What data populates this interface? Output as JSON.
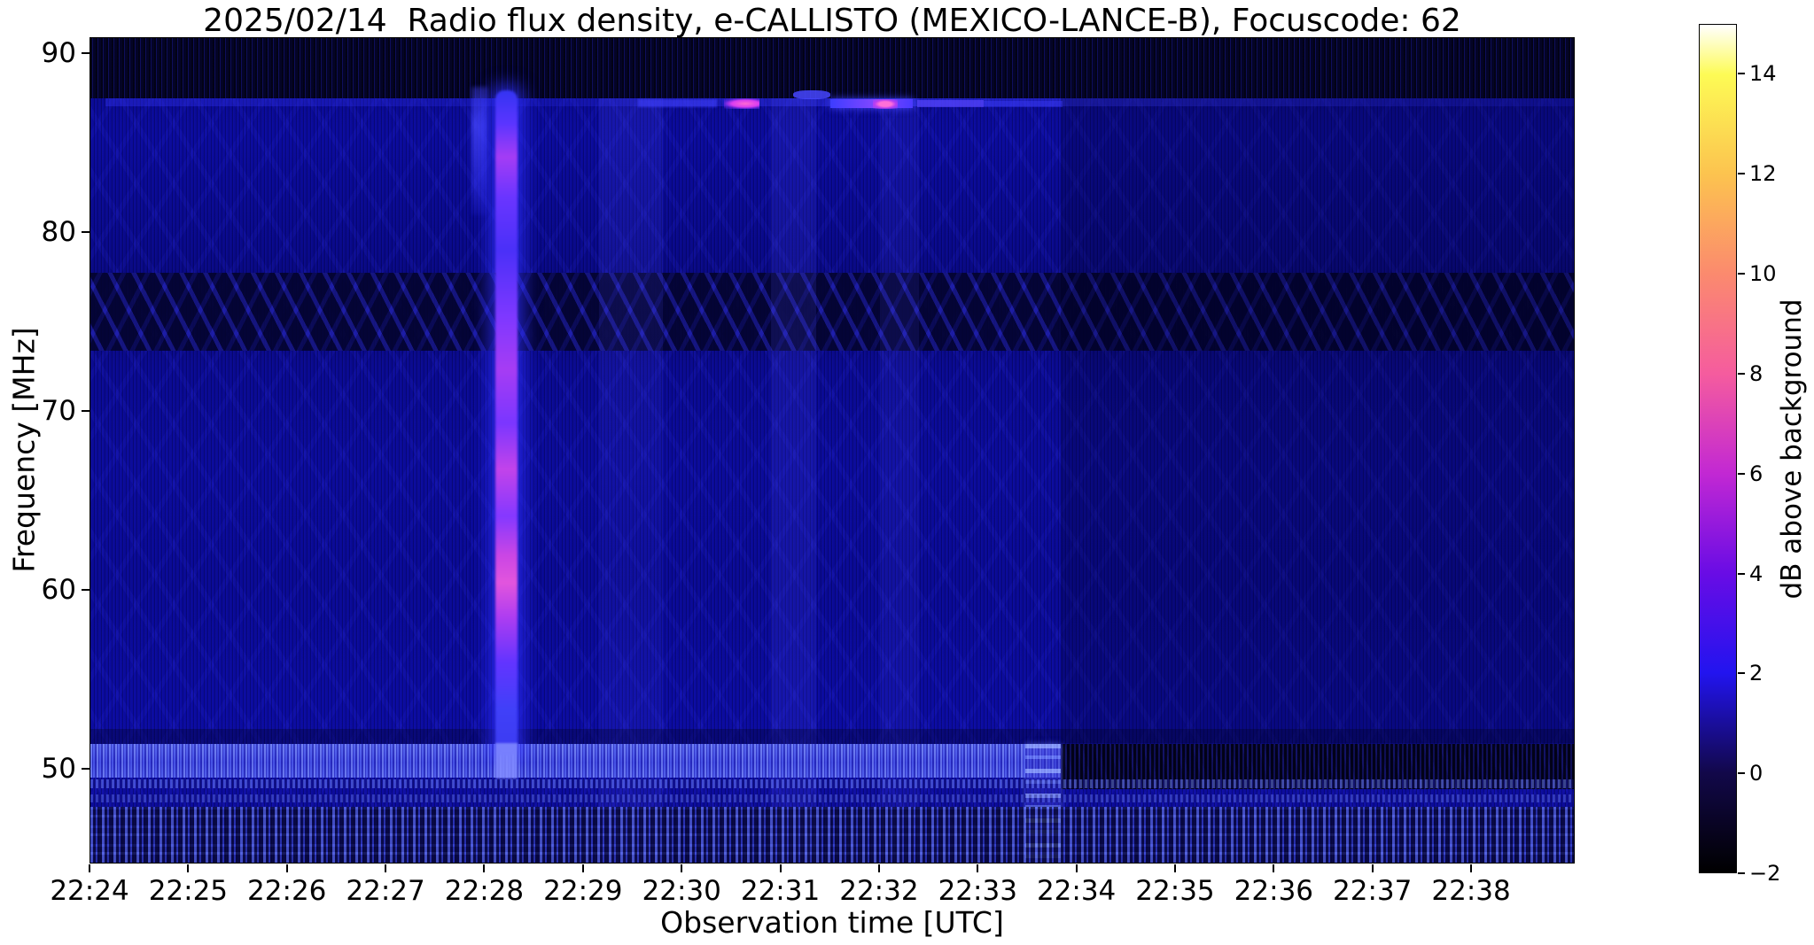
{
  "title": "2025/02/14  Radio flux density, e-CALLISTO (MEXICO-LANCE-B), Focuscode: 62",
  "chart_data": {
    "type": "heatmap",
    "subtype": "radio-spectrogram",
    "title": "2025/02/14  Radio flux density, e-CALLISTO (MEXICO-LANCE-B), Focuscode: 62",
    "meta": {
      "date": "2025/02/14",
      "instrument": "MEXICO-LANCE-B",
      "network": "e-CALLISTO",
      "focuscode": "62"
    },
    "xlabel": "Observation time [UTC]",
    "ylabel": "Frequency [MHz]",
    "x_ticks": [
      "22:24",
      "22:25",
      "22:26",
      "22:27",
      "22:28",
      "22:29",
      "22:30",
      "22:31",
      "22:32",
      "22:33",
      "22:34",
      "22:35",
      "22:36",
      "22:37",
      "22:38"
    ],
    "x_tick_interval_min": 1,
    "x_total_min": 15.05,
    "x_range": [
      "22:24:00",
      "22:39:03"
    ],
    "y_ticks": [
      90,
      80,
      70,
      60,
      50
    ],
    "y_range_mhz": [
      44.7,
      90.9
    ],
    "grid": false,
    "background_level_db": 0,
    "colorbar": {
      "label": "dB above background",
      "ticks": [
        14,
        12,
        10,
        8,
        6,
        4,
        2,
        0,
        -2
      ],
      "vmin": -2,
      "vmax": 15,
      "stops": [
        {
          "v": 15,
          "c": "#ffffff"
        },
        {
          "v": 14,
          "c": "#fdfb55"
        },
        {
          "v": 12,
          "c": "#fcc34f"
        },
        {
          "v": 10,
          "c": "#fb8a6e"
        },
        {
          "v": 8,
          "c": "#f55c9e"
        },
        {
          "v": 6,
          "c": "#c228d3"
        },
        {
          "v": 4,
          "c": "#690ce5"
        },
        {
          "v": 2,
          "c": "#2214ef"
        },
        {
          "v": 0,
          "c": "#12084a"
        },
        {
          "v": -2,
          "c": "#000000"
        }
      ]
    },
    "features": [
      {
        "name": "band-top-dark",
        "desc": "dark speckled band 87.5-90 MHz across full duration",
        "t0": 0,
        "t1": 15.05,
        "f0": 90.9,
        "f1": 87.55,
        "style": {
          "background": "repeating-linear-gradient(90deg, rgba(2,2,20,0.8) 0 2px, rgba(22,22,150,0.5) 2px 3px, rgba(4,4,40,0.8) 3px 6px), linear-gradient(#05051f,#05051f)"
        }
      },
      {
        "name": "row-top-bright-base",
        "desc": "narrow brighter channel near 87.2 MHz",
        "t0": 0.15,
        "t1": 15.05,
        "f0": 87.55,
        "f1": 87.1,
        "style": {
          "background": "linear-gradient(90deg, rgba(50,50,240,0.40), rgba(40,40,220,0.28) 30%, rgba(60,60,255,0.45) 55%, rgba(40,40,230,0.28))"
        }
      },
      {
        "name": "band-mid-dark",
        "desc": "darker interference band 73.5-78 MHz with chevron ripple pattern",
        "t0": 0,
        "t1": 15.05,
        "f0": 77.8,
        "f1": 73.4,
        "style": {
          "background": "repeating-linear-gradient(63deg, rgba(3,3,40,0.5) 0 9px, rgba(45,45,215,0.4) 9px 14px, rgba(3,3,40,0.5) 14px 24px), repeating-linear-gradient(-63deg, rgba(3,3,40,0.45) 0 9px, rgba(40,40,210,0.35) 9px 14px, rgba(3,3,40,0.45) 14px 24px), linear-gradient(rgba(4,4,55,0.5),rgba(4,4,55,0.5))"
        }
      },
      {
        "name": "column-faint-1",
        "desc": "faint brighter column near 22:29.5",
        "t0": 5.15,
        "t1": 5.8,
        "f0": 87.55,
        "f1": 44.7,
        "style": {
          "background": "linear-gradient(180deg, rgba(80,80,255,0.16), rgba(80,80,255,0.07) 60%, rgba(80,80,255,0.14))"
        }
      },
      {
        "name": "column-faint-2",
        "desc": "faint brighter column near 22:31.1",
        "t0": 6.9,
        "t1": 7.35,
        "f0": 87.55,
        "f1": 44.7,
        "style": {
          "background": "rgba(85,85,255,0.14)"
        }
      },
      {
        "name": "column-faint-3",
        "desc": "faint brighter column near 22:32.2",
        "t0": 8.0,
        "t1": 8.4,
        "f0": 87.55,
        "f1": 44.7,
        "style": {
          "background": "rgba(85,85,255,0.10)"
        }
      },
      {
        "name": "region-right-dim",
        "desc": "slightly darker smoother region after 22:33.8",
        "t0": 9.83,
        "t1": 15.05,
        "f0": 87.55,
        "f1": 51.5,
        "style": {
          "background": "rgba(0,0,18,0.22)"
        }
      },
      {
        "name": "band-low-gap",
        "desc": "dark lane near 52 MHz",
        "t0": 0,
        "t1": 15.05,
        "f0": 52.3,
        "f1": 51.45,
        "style": {
          "background": "rgba(0,0,22,0.3)"
        }
      },
      {
        "name": "band-low-bright",
        "desc": "bright textured band 49.6-51.4 MHz until 22:33.8",
        "t0": 0,
        "t1": 9.83,
        "f0": 51.45,
        "f1": 49.55,
        "style": {
          "background": "repeating-linear-gradient(90deg, rgba(140,160,255,0.55) 0 2px, rgba(40,40,190,0.5) 2px 3px, rgba(100,120,255,0.45) 3px 5px, rgba(30,30,170,0.5) 5px 7px), linear-gradient(180deg, rgba(120,140,255,0.6), rgba(70,80,235,0.45) 55%, rgba(110,130,255,0.5)), linear-gradient(#1818b8,#1818b8)"
        }
      },
      {
        "name": "band-low-dark-right",
        "desc": "band turns dark after 22:33.8",
        "t0": 9.83,
        "t1": 15.05,
        "f0": 51.45,
        "f1": 48.9,
        "style": {
          "background": "repeating-linear-gradient(90deg, rgba(25,25,130,0.55) 0 2px, rgba(2,2,22,0.85) 2px 5px), repeating-linear-gradient(75deg, rgba(0,0,15,0.5) 0 12px, rgba(25,25,120,0.3) 12px 18px), linear-gradient(#05052e,#05052e)"
        }
      },
      {
        "name": "cal-block",
        "desc": "brighter calibration block 22:33.4-22:33.8 below 51.5 MHz",
        "t0": 9.47,
        "t1": 9.83,
        "f0": 51.45,
        "f1": 44.7,
        "style": {
          "background": "repeating-linear-gradient(180deg, rgba(150,170,255,0.75) 0 5px, rgba(60,60,215,0.45) 5px 13px, rgba(120,140,255,0.6) 13px 17px, rgba(50,50,200,0.4) 17px 28px)",
          "boxShadow": "0 0 6px rgba(120,140,255,0.5)"
        }
      },
      {
        "name": "row-stripe-1",
        "desc": "bright striped row ~49.2 MHz",
        "t0": 0,
        "t1": 15.05,
        "f0": 49.45,
        "f1": 48.95,
        "style": {
          "background": "repeating-linear-gradient(90deg, rgba(110,130,255,0.6) 0 3px, rgba(20,20,120,0.5) 3px 6px)",
          "opacity": "0.85"
        }
      },
      {
        "name": "row-stripe-2",
        "desc": "bright striped row ~48.4 MHz",
        "t0": 0,
        "t1": 15.05,
        "f0": 48.6,
        "f1": 48.15,
        "style": {
          "background": "repeating-linear-gradient(90deg, rgba(110,130,255,0.55) 0 3px, rgba(20,20,120,0.5) 3px 6px)",
          "opacity": "0.7"
        }
      },
      {
        "name": "band-bottom-comb",
        "desc": "vertical comb texture 45-48 MHz",
        "t0": 0,
        "t1": 15.05,
        "f0": 47.9,
        "f1": 44.7,
        "style": {
          "background": "repeating-linear-gradient(90deg, rgba(110,130,255,0.55) 0 3px, rgba(8,8,50,0.65) 3px 6px, rgba(80,100,250,0.4) 6px 8px, rgba(6,6,40,0.65) 8px 13px), repeating-linear-gradient(180deg, rgba(90,110,255,0.3) 0 3px, rgba(10,10,60,0.35) 3px 9px, rgba(120,140,255,0.35) 9px 12px, rgba(10,10,60,0.3) 12px 21px)"
        }
      },
      {
        "name": "burst-precursor",
        "desc": "fainter streak just before main burst, 81-88 MHz",
        "t0": 3.86,
        "t1": 4.02,
        "f0": 88.2,
        "f1": 81.0,
        "style": {
          "background": "linear-gradient(180deg, rgba(70,70,255,0.35), rgba(72,72,255,0.75) 30%, rgba(60,60,255,0.45) 75%, rgba(50,50,255,0.12))",
          "filter": "blur(2px)"
        }
      },
      {
        "name": "burst-main",
        "desc": "broadband radio burst at ~22:28.2 spanning ~51-88 MHz, magenta core near 60 MHz",
        "t0": 4.1,
        "t1": 4.33,
        "f0": 88.0,
        "f1": 50.8,
        "style": {
          "background": "linear-gradient(180deg, #3434f2 0%, #5a35ff 5%, #a43cf5 10%, #6a35ff 16%, #4a30f8 24%, #7e38ff 34%, #a63cf4 42%, #7a36ff 50%, #c243ea 57%, #8438ff 64%, #cb46e4 70%, #e255dd 74%, #b03df0 79%, #6234ff 86%, #4040f8 93%, #3b3bf0 100%)",
          "boxShadow": "0 0 18px 8px rgba(48,48,255,0.65)",
          "borderRadius": "10px",
          "filter": "blur(1.2px)"
        }
      },
      {
        "name": "burst-foot",
        "desc": "burst crossing the 50 MHz band",
        "t0": 4.1,
        "t1": 4.33,
        "f0": 51.5,
        "f1": 49.5,
        "style": {
          "background": "rgba(130,140,255,0.85)",
          "filter": "blur(1px)"
        }
      },
      {
        "name": "blob-1",
        "desc": "blue patch on 87.2 MHz row ~22:29.8",
        "t0": 5.55,
        "t1": 6.35,
        "f0": 87.5,
        "f1": 87.05,
        "style": {
          "background": "rgba(65,65,255,0.55)",
          "filter": "blur(1px)"
        }
      },
      {
        "name": "blob-pink-1",
        "desc": "pink blob on 87.2 MHz row ~22:30.6",
        "t0": 6.42,
        "t1": 6.78,
        "f0": 87.55,
        "f1": 86.95,
        "style": {
          "background": "radial-gradient(ellipse at 60% 50%, #ff6ad4 0%, #d93df0 45%, rgba(120,40,240,0.6) 70%, rgba(60,40,240,0) 100%)"
        }
      },
      {
        "name": "blob-2",
        "desc": "blue dash ~22:31.3 slightly higher row",
        "t0": 7.12,
        "t1": 7.5,
        "f0": 88.0,
        "f1": 87.5,
        "style": {
          "background": "rgba(70,70,255,0.85)",
          "borderRadius": "40%"
        }
      },
      {
        "name": "blob-3",
        "desc": "bright blue-violet segment 22:31.5-22:32.3",
        "t0": 7.5,
        "t1": 8.33,
        "f0": 87.5,
        "f1": 87.0,
        "style": {
          "background": "linear-gradient(90deg, #3d3dff, #8447ff 55%, #4a3aff)",
          "boxShadow": "0 0 9px rgba(70,70,255,0.9)"
        }
      },
      {
        "name": "blob-pink-2",
        "desc": "pink blob ~22:32.1",
        "t0": 7.93,
        "t1": 8.18,
        "f0": 87.5,
        "f1": 86.95,
        "style": {
          "background": "radial-gradient(#ff70d8 0%, #ff70d8 35%, rgba(200,60,240,0.8) 60%, rgba(200,60,240,0) 100%)"
        }
      },
      {
        "name": "blob-4",
        "desc": "violet-blue segment ~22:32.7",
        "t0": 8.38,
        "t1": 9.05,
        "f0": 87.45,
        "f1": 87.05,
        "style": {
          "background": "rgba(90,70,255,0.65)"
        }
      },
      {
        "name": "blob-5",
        "desc": "faint blue segment ~22:33.3",
        "t0": 9.05,
        "t1": 9.85,
        "f0": 87.4,
        "f1": 87.05,
        "style": {
          "background": "rgba(60,60,250,0.4)"
        }
      }
    ]
  }
}
